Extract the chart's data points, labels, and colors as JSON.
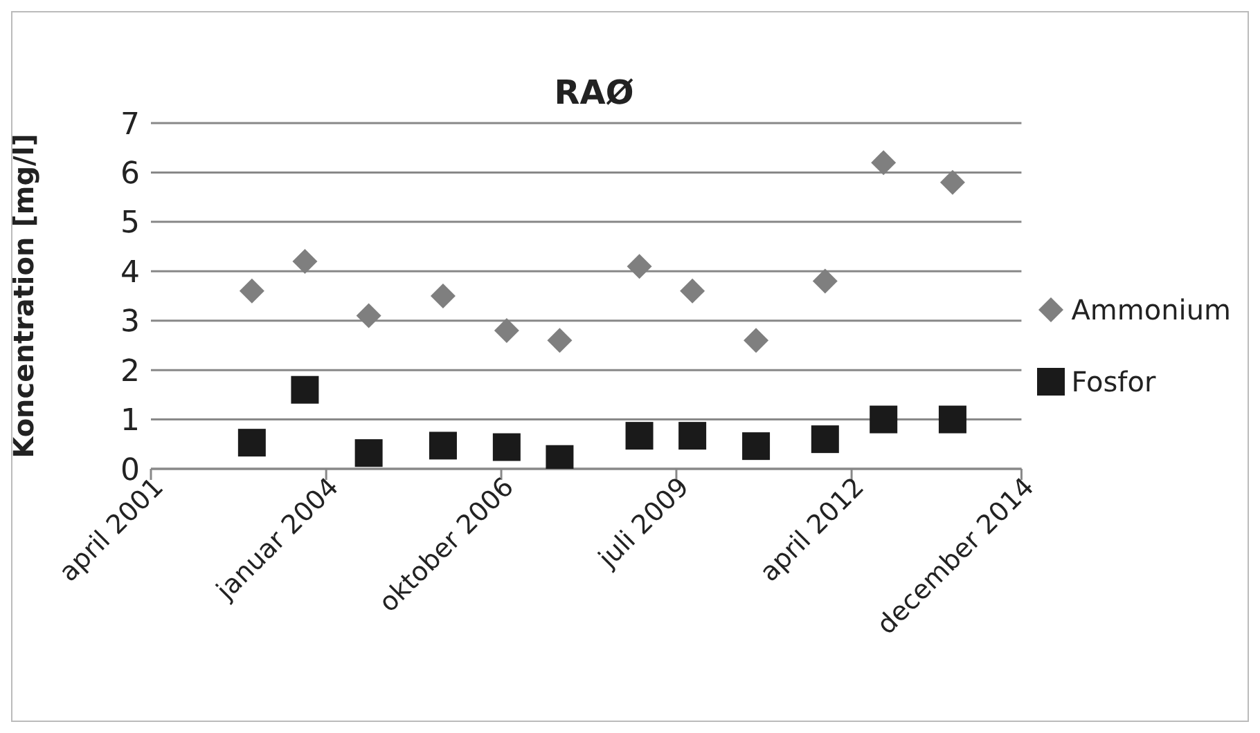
{
  "chart_data": {
    "type": "scatter",
    "title": "RAØ",
    "ylabel": "Koncentration [mg/l]",
    "x": [
      "2002-11",
      "2003-09",
      "2004-09",
      "2005-11",
      "2006-11",
      "2007-09",
      "2008-12",
      "2009-10",
      "2010-10",
      "2011-11",
      "2012-10",
      "2013-11"
    ],
    "series": [
      {
        "name": "Ammonium",
        "color": "#7f7f7f",
        "marker": "diamond",
        "values": [
          3.6,
          4.2,
          3.1,
          3.5,
          2.8,
          2.6,
          4.1,
          3.6,
          2.6,
          3.8,
          6.2,
          5.8
        ]
      },
      {
        "name": "Fosfor",
        "color": "#1a1a1a",
        "marker": "square",
        "values": [
          0.53,
          1.6,
          0.32,
          0.47,
          0.44,
          0.2,
          0.67,
          0.67,
          0.46,
          0.6,
          1.0,
          1.0
        ]
      }
    ],
    "xlim": [
      "2001-04-01",
      "2014-12-01"
    ],
    "xticks": [
      {
        "value": "2001-04-01",
        "label": "april 2001"
      },
      {
        "value": "2004-01-01",
        "label": "januar 2004"
      },
      {
        "value": "2006-10-01",
        "label": "oktober 2006"
      },
      {
        "value": "2009-07-01",
        "label": "juli 2009"
      },
      {
        "value": "2012-04-01",
        "label": "april 2012"
      },
      {
        "value": "2014-12-01",
        "label": "december 2014"
      }
    ],
    "ylim": [
      0,
      7
    ],
    "yticks": [
      0,
      1,
      2,
      3,
      4,
      5,
      6,
      7
    ],
    "grid": "y",
    "legend": "right"
  }
}
